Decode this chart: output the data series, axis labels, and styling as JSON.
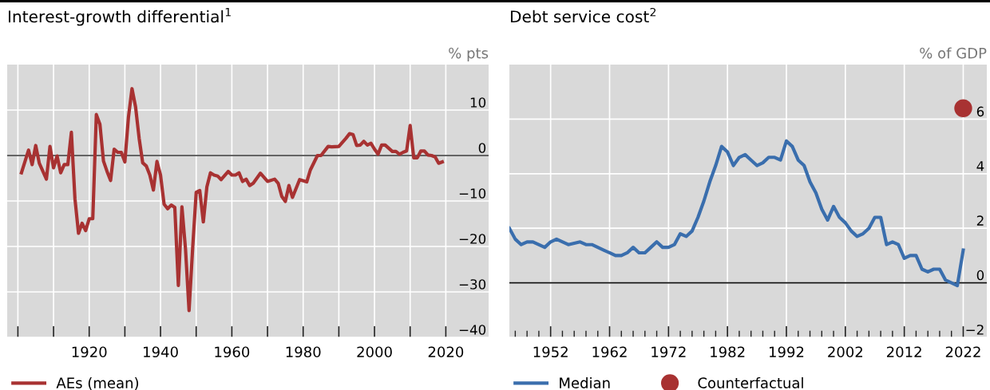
{
  "chart_data": [
    {
      "type": "line",
      "title": "Interest-growth differential$^{1}$",
      "ylabel": "% pts",
      "x": [
        1901,
        1903,
        1904,
        1905,
        1906,
        1908,
        1909,
        1910,
        1911,
        1912,
        1913,
        1914,
        1915,
        1916,
        1917,
        1918,
        1919,
        1920,
        1921,
        1922,
        1923,
        1924,
        1925,
        1926,
        1927,
        1928,
        1929,
        1930,
        1931,
        1932,
        1933,
        1934,
        1935,
        1936,
        1937,
        1938,
        1939,
        1940,
        1941,
        1942,
        1943,
        1944,
        1945,
        1946,
        1947,
        1948,
        1949,
        1950,
        1951,
        1952,
        1953,
        1954,
        1955,
        1956,
        1957,
        1959,
        1960,
        1961,
        1962,
        1963,
        1964,
        1965,
        1966,
        1968,
        1970,
        1972,
        1973,
        1974,
        1975,
        1976,
        1977,
        1979,
        1981,
        1982,
        1984,
        1985,
        1987,
        1988,
        1990,
        1992,
        1993,
        1994,
        1995,
        1996,
        1997,
        1998,
        1999,
        2000,
        2001,
        2002,
        2003,
        2005,
        2006,
        2007,
        2008,
        2009,
        2010,
        2011,
        2012,
        2013,
        2014,
        2015,
        2016,
        2017,
        2018,
        2019
      ],
      "series": [
        {
          "name": "AEs (mean)",
          "color": "#a83232",
          "values": [
            -3.8,
            1.2,
            -2.0,
            2.2,
            -1.7,
            -5.2,
            2.0,
            -2.7,
            -0.1,
            -3.8,
            -2.0,
            -2.0,
            5.1,
            -9.5,
            -17.1,
            -14.9,
            -16.5,
            -13.9,
            -13.9,
            9.0,
            6.9,
            -1.2,
            -3.5,
            -5.5,
            1.4,
            0.7,
            0.7,
            -1.4,
            8.4,
            14.7,
            10.7,
            3.8,
            -1.6,
            -2.3,
            -4.3,
            -7.6,
            -1.3,
            -4.3,
            -10.7,
            -11.7,
            -10.9,
            -11.4,
            -28.6,
            -11.3,
            -20.5,
            -34.1,
            -20.5,
            -8.1,
            -7.7,
            -14.6,
            -6.9,
            -3.8,
            -4.3,
            -4.5,
            -5.3,
            -3.5,
            -4.3,
            -4.3,
            -3.8,
            -5.7,
            -5.2,
            -6.6,
            -6.1,
            -3.9,
            -5.7,
            -5.2,
            -6.1,
            -9.0,
            -10.1,
            -6.6,
            -9.2,
            -5.3,
            -5.8,
            -3.2,
            0.0,
            0.0,
            2.0,
            1.9,
            2.0,
            3.8,
            4.8,
            4.6,
            2.2,
            2.3,
            3.1,
            2.3,
            2.7,
            1.4,
            0.3,
            2.3,
            2.3,
            0.9,
            0.9,
            0.3,
            0.7,
            1.0,
            6.6,
            -0.5,
            -0.5,
            1.0,
            1.0,
            0.1,
            0.0,
            -0.3,
            -1.7,
            -1.4
          ]
        }
      ],
      "xlim": [
        1897,
        2032
      ],
      "ylim": [
        -40,
        20
      ],
      "xticks": [
        {
          "value": 1900,
          "label": null
        },
        {
          "value": 1910,
          "label": null
        },
        1920,
        {
          "value": 1930,
          "label": null
        },
        1940,
        {
          "value": 1950,
          "label": null
        },
        1960,
        {
          "value": 1970,
          "label": null
        },
        1980,
        {
          "value": 1990,
          "label": null
        },
        2000,
        {
          "value": 2010,
          "label": null
        },
        2020
      ],
      "yticks": [
        -40,
        -30,
        -20,
        -10,
        0,
        10
      ],
      "ref_lines": [
        {
          "axis": "y",
          "value": 0,
          "color": "#333333"
        }
      ],
      "grid": true,
      "legend": "bottom left",
      "marker": "none",
      "line_style": "solid"
    },
    {
      "type": "line",
      "title": "Debt service cost$^{2}$",
      "ylabel": "% of GDP",
      "x": [
        1945,
        1946,
        1947,
        1948,
        1949,
        1951,
        1952,
        1953,
        1955,
        1957,
        1958,
        1959,
        1961,
        1962,
        1963,
        1964,
        1965,
        1966,
        1967,
        1968,
        1969,
        1970,
        1971,
        1972,
        1973,
        1974,
        1975,
        1976,
        1977,
        1978,
        1979,
        1980,
        1981,
        1982,
        1983,
        1984,
        1985,
        1986,
        1987,
        1988,
        1989,
        1990,
        1991,
        1992,
        1993,
        1994,
        1995,
        1996,
        1997,
        1998,
        1999,
        2000,
        2001,
        2002,
        2003,
        2004,
        2005,
        2006,
        2007,
        2008,
        2009,
        2010,
        2011,
        2012,
        2013,
        2014,
        2015,
        2016,
        2017,
        2018,
        2019,
        2020,
        2021,
        2022
      ],
      "series": [
        {
          "name": "Median",
          "color": "#3a6ead",
          "values": [
            2.0,
            1.6,
            1.4,
            1.5,
            1.5,
            1.3,
            1.5,
            1.6,
            1.4,
            1.5,
            1.4,
            1.4,
            1.2,
            1.1,
            1.0,
            1.0,
            1.1,
            1.3,
            1.1,
            1.1,
            1.3,
            1.5,
            1.3,
            1.3,
            1.4,
            1.8,
            1.7,
            1.9,
            2.4,
            3.0,
            3.7,
            4.3,
            5.0,
            4.8,
            4.3,
            4.6,
            4.7,
            4.5,
            4.3,
            4.4,
            4.6,
            4.6,
            4.5,
            5.2,
            5.0,
            4.5,
            4.3,
            3.7,
            3.3,
            2.7,
            2.3,
            2.8,
            2.4,
            2.2,
            1.9,
            1.7,
            1.8,
            2.0,
            2.4,
            2.4,
            1.4,
            1.5,
            1.4,
            0.9,
            1.0,
            1.0,
            0.5,
            0.4,
            0.5,
            0.5,
            0.1,
            0.0,
            -0.1,
            1.2
          ]
        },
        {
          "name": "Counterfactual",
          "type": "scatter",
          "color": "#a83232",
          "marker": "circle",
          "x": [
            2022
          ],
          "values": [
            6.4
          ]
        }
      ],
      "xlim": [
        1945,
        2026
      ],
      "ylim": [
        -2,
        8
      ],
      "xticks": [
        {
          "value": 1946,
          "label": null
        },
        {
          "value": 1948,
          "label": null
        },
        {
          "value": 1950,
          "label": null
        },
        1952,
        {
          "value": 1954,
          "label": null
        },
        {
          "value": 1956,
          "label": null
        },
        {
          "value": 1958,
          "label": null
        },
        {
          "value": 1960,
          "label": null
        },
        1962,
        {
          "value": 1964,
          "label": null
        },
        {
          "value": 1966,
          "label": null
        },
        {
          "value": 1968,
          "label": null
        },
        {
          "value": 1970,
          "label": null
        },
        1972,
        {
          "value": 1974,
          "label": null
        },
        {
          "value": 1976,
          "label": null
        },
        {
          "value": 1978,
          "label": null
        },
        {
          "value": 1980,
          "label": null
        },
        1982,
        {
          "value": 1984,
          "label": null
        },
        {
          "value": 1986,
          "label": null
        },
        {
          "value": 1988,
          "label": null
        },
        {
          "value": 1990,
          "label": null
        },
        1992,
        {
          "value": 1994,
          "label": null
        },
        {
          "value": 1996,
          "label": null
        },
        {
          "value": 1998,
          "label": null
        },
        {
          "value": 2000,
          "label": null
        },
        2002,
        {
          "value": 2004,
          "label": null
        },
        {
          "value": 2006,
          "label": null
        },
        {
          "value": 2008,
          "label": null
        },
        {
          "value": 2010,
          "label": null
        },
        2012,
        {
          "value": 2014,
          "label": null
        },
        {
          "value": 2016,
          "label": null
        },
        {
          "value": 2018,
          "label": null
        },
        {
          "value": 2020,
          "label": null
        },
        2022
      ],
      "yticks": [
        -2,
        0,
        2,
        4,
        6
      ],
      "ref_lines": [
        {
          "axis": "y",
          "value": 0,
          "color": "#111111"
        }
      ],
      "grid": true,
      "legend": "bottom left",
      "marker": "none",
      "line_style": "solid"
    }
  ]
}
